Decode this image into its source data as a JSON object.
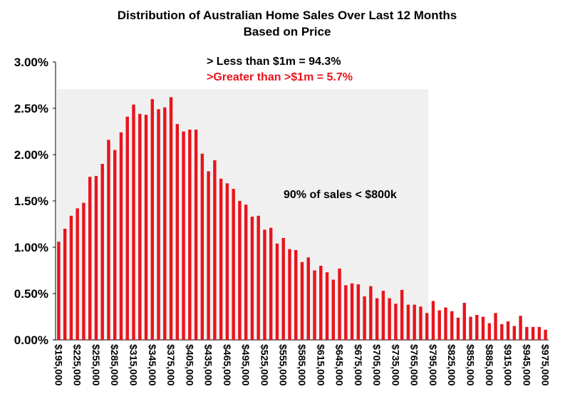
{
  "chart_data": {
    "type": "bar",
    "title": [
      "Distribution of Australian Home Sales Over Last 12 Months",
      "Based on Price"
    ],
    "annotations": [
      {
        "text": "> Less than $1m = 94.3%",
        "color": "#000000"
      },
      {
        "text": ">Greater than >$1m = 5.7%",
        "color": "#e8141c"
      },
      {
        "text": "90% of sales < $800k",
        "color": "#000000"
      }
    ],
    "color": "#e8141c",
    "categories": [
      "$195,000",
      null,
      null,
      "$225,000",
      null,
      null,
      "$255,000",
      null,
      null,
      "$285,000",
      null,
      null,
      "$315,000",
      null,
      null,
      "$345,000",
      null,
      null,
      "$375,000",
      null,
      null,
      "$405,000",
      null,
      null,
      "$435,000",
      null,
      null,
      "$465,000",
      null,
      null,
      "$495,000",
      null,
      null,
      "$525,000",
      null,
      null,
      "$555,000",
      null,
      null,
      "$585,000",
      null,
      null,
      "$615,000",
      null,
      null,
      "$645,000",
      null,
      null,
      "$675,000",
      null,
      null,
      "$705,000",
      null,
      null,
      "$735,000",
      null,
      null,
      "$765,000",
      null,
      null,
      "$795,000",
      null,
      null,
      "$825,000",
      null,
      null,
      "$855,000",
      null,
      null,
      "$885,000",
      null,
      null,
      "$915,000",
      null,
      null,
      "$945,000",
      null,
      null,
      "$975,000"
    ],
    "values": [
      1.06,
      1.2,
      1.34,
      1.42,
      1.48,
      1.76,
      1.77,
      1.9,
      2.16,
      2.05,
      2.24,
      2.41,
      2.54,
      2.44,
      2.43,
      2.6,
      2.49,
      2.51,
      2.62,
      2.33,
      2.25,
      2.27,
      2.27,
      2.01,
      1.82,
      1.94,
      1.74,
      1.69,
      1.63,
      1.5,
      1.46,
      1.33,
      1.34,
      1.19,
      1.21,
      1.04,
      1.1,
      0.98,
      0.97,
      0.84,
      0.89,
      0.75,
      0.8,
      0.73,
      0.65,
      0.77,
      0.59,
      0.61,
      0.6,
      0.47,
      0.58,
      0.45,
      0.53,
      0.45,
      0.39,
      0.54,
      0.38,
      0.38,
      0.36,
      0.29,
      0.42,
      0.32,
      0.35,
      0.31,
      0.24,
      0.4,
      0.25,
      0.27,
      0.25,
      0.18,
      0.29,
      0.17,
      0.2,
      0.15,
      0.26,
      0.14,
      0.14,
      0.14,
      0.11
    ],
    "ylim": [
      0,
      3
    ],
    "yticks": [
      {
        "value": 0,
        "label": "0.00%"
      },
      {
        "value": 0.5,
        "label": "0.50%"
      },
      {
        "value": 1,
        "label": "1.00%"
      },
      {
        "value": 1.5,
        "label": "1.50%"
      },
      {
        "value": 2,
        "label": "2.00%"
      },
      {
        "value": 2.5,
        "label": "2.50%"
      },
      {
        "value": 3,
        "label": "3.00%"
      }
    ],
    "grid": false
  }
}
